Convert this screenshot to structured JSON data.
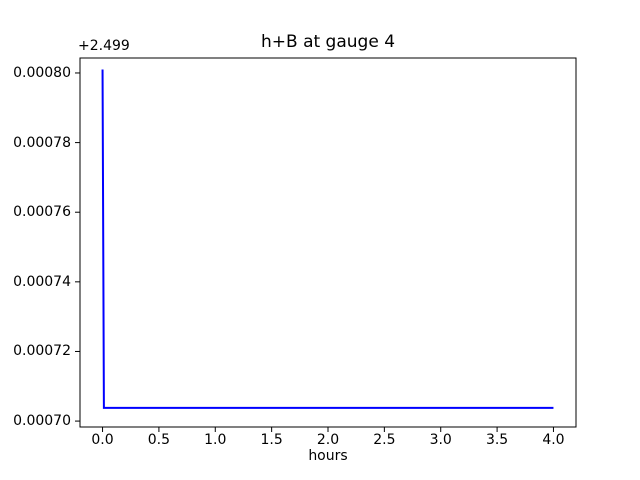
{
  "figure": {
    "background_color": "#ffffff",
    "axes_color": "#000000"
  },
  "chart_data": {
    "type": "line",
    "title": "h+B at gauge 4",
    "xlabel": "hours",
    "ylabel": "",
    "y_axis_offset_text": "+2.499",
    "x_ticks": [
      0.0,
      0.5,
      1.0,
      1.5,
      2.0,
      2.5,
      3.0,
      3.5,
      4.0
    ],
    "x_tick_labels": [
      "0.0",
      "0.5",
      "1.0",
      "1.5",
      "2.0",
      "2.5",
      "3.0",
      "3.5",
      "4.0"
    ],
    "y_ticks": [
      0.0007,
      0.00072,
      0.00074,
      0.00076,
      0.00078,
      0.0008
    ],
    "y_tick_labels": [
      "0.00070",
      "0.00072",
      "0.00074",
      "0.00076",
      "0.00078",
      "0.00080"
    ],
    "xlim": [
      -0.2,
      4.2
    ],
    "ylim": [
      0.0006983,
      0.0008043
    ],
    "grid": false,
    "legend": "none",
    "series": [
      {
        "name": "h+B at gauge 4",
        "color": "#0000ff",
        "linewidth": 2,
        "points": [
          [
            0.0,
            0.000801
          ],
          [
            0.012,
            0.0007038
          ],
          [
            4.0,
            0.0007038
          ]
        ]
      }
    ]
  }
}
